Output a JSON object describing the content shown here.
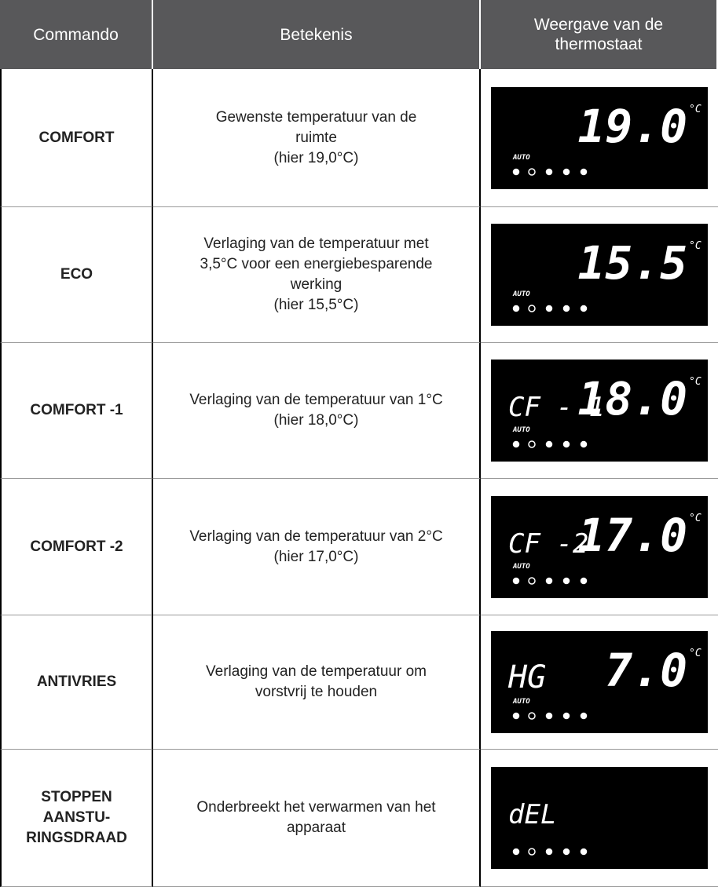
{
  "header": {
    "columns": [
      "Commando",
      "Betekenis",
      "Weergave van de thermostaat"
    ]
  },
  "rows": [
    {
      "command": [
        "COMFORT"
      ],
      "meaning": [
        "Gewenste temperatuur van de",
        "ruimte",
        "(hier 19,0°C)"
      ],
      "display": {
        "mode": "",
        "main": "19.0",
        "unit": "°C",
        "auto": "AUTO"
      }
    },
    {
      "command": [
        "ECO"
      ],
      "meaning": [
        "Verlaging van de temperatuur met",
        "3,5°C voor een energiebesparende",
        "werking",
        "(hier 15,5°C)"
      ],
      "display": {
        "mode": "",
        "main": "15.5",
        "unit": "°C",
        "auto": "AUTO"
      }
    },
    {
      "command": [
        "COMFORT -1"
      ],
      "meaning": [
        "Verlaging van de temperatuur van 1°C",
        "(hier 18,0°C)"
      ],
      "display": {
        "mode": "CF - 1",
        "main": "18.0",
        "unit": "°C",
        "auto": "AUTO"
      }
    },
    {
      "command": [
        "COMFORT -2"
      ],
      "meaning": [
        "Verlaging van de temperatuur van 2°C",
        "(hier 17,0°C)"
      ],
      "display": {
        "mode": "CF -2",
        "main": "17.0",
        "unit": "°C",
        "auto": "AUTO"
      }
    },
    {
      "command": [
        "ANTIVRIES"
      ],
      "meaning": [
        "Verlaging van de temperatuur om",
        "vorstvrij te houden"
      ],
      "display": {
        "mode": "HG",
        "main": "7.0",
        "unit": "°C",
        "auto": "AUTO"
      }
    },
    {
      "command": [
        "STOPPEN",
        "AANSTU-",
        "RINGSDRAAD"
      ],
      "meaning": [
        "Onderbreekt het verwarmen van het",
        "apparaat"
      ],
      "display": {
        "mode": "dEL"
      }
    }
  ]
}
